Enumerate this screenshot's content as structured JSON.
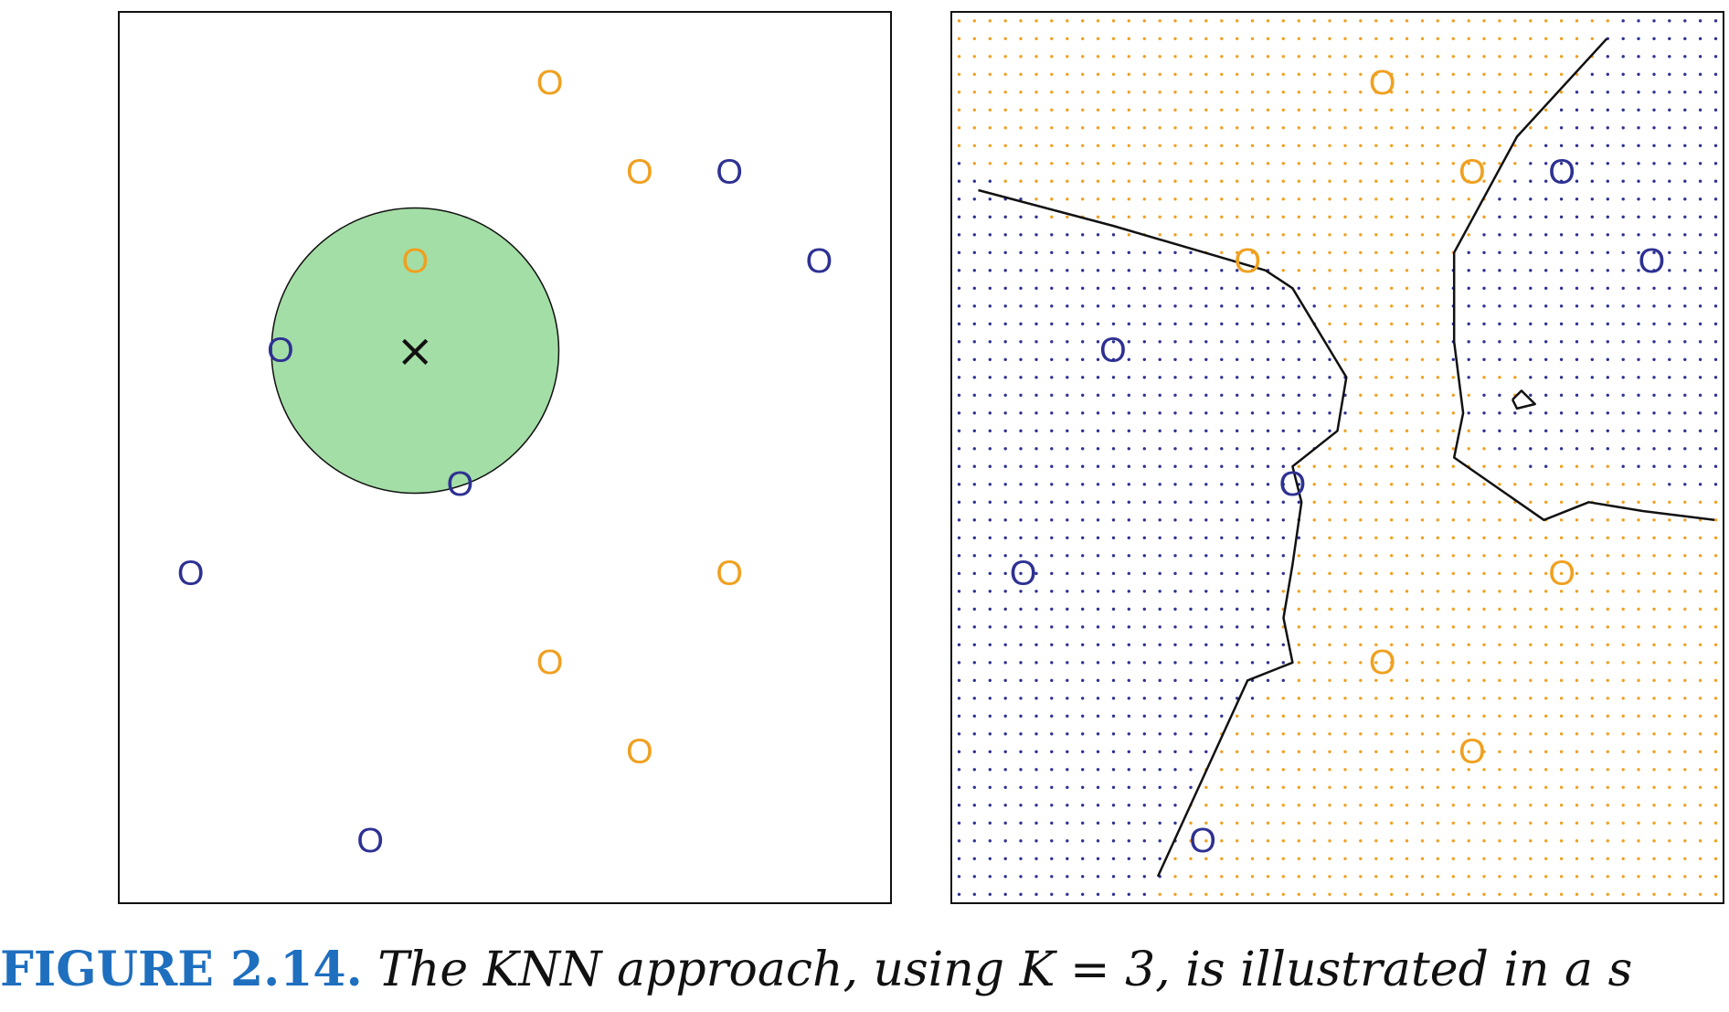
{
  "caption": {
    "label": "FIGURE 2.14.",
    "text": "The KNN approach, using K = 3, is illustrated in a s"
  },
  "colors": {
    "orange": "#f0a020",
    "blue": "#2e3192",
    "neighborhood": "#a3dea6",
    "boundary": "#111111",
    "caption_label": "#1f6fbf"
  },
  "chart_data": [
    {
      "type": "scatter",
      "name": "left-panel",
      "xlim": [
        0,
        8.6
      ],
      "ylim": [
        0,
        10
      ],
      "marker": "O",
      "points": [
        {
          "x": 4.8,
          "y": 9.2,
          "class": "orange"
        },
        {
          "x": 5.8,
          "y": 8.2,
          "class": "orange"
        },
        {
          "x": 6.8,
          "y": 8.2,
          "class": "blue"
        },
        {
          "x": 3.3,
          "y": 7.2,
          "class": "orange"
        },
        {
          "x": 7.8,
          "y": 7.2,
          "class": "blue"
        },
        {
          "x": 1.8,
          "y": 6.2,
          "class": "blue"
        },
        {
          "x": 3.8,
          "y": 4.7,
          "class": "blue"
        },
        {
          "x": 0.8,
          "y": 3.7,
          "class": "blue"
        },
        {
          "x": 6.8,
          "y": 3.7,
          "class": "orange"
        },
        {
          "x": 4.8,
          "y": 2.7,
          "class": "orange"
        },
        {
          "x": 5.8,
          "y": 1.7,
          "class": "orange"
        },
        {
          "x": 2.8,
          "y": 0.7,
          "class": "blue"
        }
      ],
      "test_point": {
        "x": 3.3,
        "y": 6.2,
        "marker": "×"
      },
      "neighborhood_radius": 1.6
    },
    {
      "type": "scatter",
      "name": "right-panel-knn-decision-boundary",
      "xlim": [
        0,
        8.6
      ],
      "ylim": [
        0,
        10
      ],
      "marker": "O",
      "points": [
        {
          "x": 4.8,
          "y": 9.2,
          "class": "orange"
        },
        {
          "x": 5.8,
          "y": 8.2,
          "class": "orange"
        },
        {
          "x": 6.8,
          "y": 8.2,
          "class": "blue"
        },
        {
          "x": 3.3,
          "y": 7.2,
          "class": "orange"
        },
        {
          "x": 7.8,
          "y": 7.2,
          "class": "blue"
        },
        {
          "x": 1.8,
          "y": 6.2,
          "class": "blue"
        },
        {
          "x": 3.8,
          "y": 4.7,
          "class": "blue"
        },
        {
          "x": 0.8,
          "y": 3.7,
          "class": "blue"
        },
        {
          "x": 6.8,
          "y": 3.7,
          "class": "orange"
        },
        {
          "x": 4.8,
          "y": 2.7,
          "class": "orange"
        },
        {
          "x": 5.8,
          "y": 1.7,
          "class": "orange"
        },
        {
          "x": 2.8,
          "y": 0.7,
          "class": "blue"
        }
      ],
      "grid": {
        "cols": 50,
        "rows": 50
      },
      "boundaries": [
        [
          [
            0.3,
            8.0
          ],
          [
            1.8,
            7.6
          ],
          [
            3.5,
            7.1
          ],
          [
            3.8,
            6.9
          ],
          [
            4.4,
            5.9
          ],
          [
            4.3,
            5.3
          ],
          [
            3.8,
            4.9
          ],
          [
            3.9,
            4.5
          ],
          [
            3.8,
            3.8
          ],
          [
            3.7,
            3.2
          ],
          [
            3.8,
            2.7
          ],
          [
            3.3,
            2.5
          ],
          [
            2.3,
            0.3
          ]
        ],
        [
          [
            7.3,
            9.7
          ],
          [
            6.3,
            8.6
          ],
          [
            5.6,
            7.3
          ],
          [
            5.6,
            6.3
          ],
          [
            5.7,
            5.5
          ],
          [
            5.6,
            5.0
          ],
          [
            6.6,
            4.3
          ],
          [
            7.1,
            4.5
          ],
          [
            7.7,
            4.4
          ],
          [
            8.5,
            4.3
          ]
        ],
        [
          [
            6.25,
            5.65
          ],
          [
            6.35,
            5.75
          ],
          [
            6.5,
            5.6
          ],
          [
            6.3,
            5.55
          ],
          [
            6.25,
            5.65
          ]
        ]
      ]
    }
  ]
}
